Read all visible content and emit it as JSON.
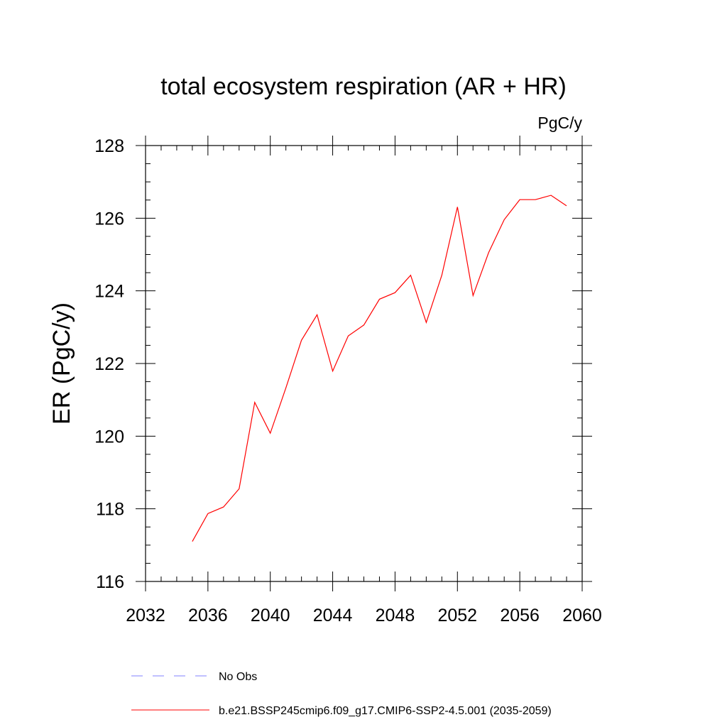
{
  "chart_data": {
    "type": "line",
    "title": "total ecosystem respiration (AR + HR)",
    "units_label": "PgC/y",
    "xlabel": "",
    "ylabel": "ER  (PgC/y)",
    "xlim": [
      2032,
      2060
    ],
    "ylim": [
      116,
      128
    ],
    "x_ticks": [
      2032,
      2036,
      2040,
      2044,
      2048,
      2052,
      2056,
      2060
    ],
    "x_tick_labels": [
      "2032",
      "2036",
      "2040",
      "2044",
      "2048",
      "2052",
      "2056",
      "2060"
    ],
    "y_ticks": [
      116,
      118,
      120,
      122,
      124,
      126,
      128
    ],
    "y_tick_labels": [
      "116",
      "118",
      "120",
      "122",
      "124",
      "126",
      "128"
    ],
    "x_minor_step": 1,
    "y_minor_step": 0.5,
    "grid": false,
    "legend_position": "bottom",
    "series": [
      {
        "name": "b.e21.BSSP245cmip6.f09_g17.CMIP6-SSP2-4.5.001 (2035-2059)",
        "color": "#ff0000",
        "dash": "solid",
        "x": [
          2035,
          2036,
          2037,
          2038,
          2039,
          2040,
          2041,
          2042,
          2043,
          2044,
          2045,
          2046,
          2047,
          2048,
          2049,
          2050,
          2051,
          2052,
          2053,
          2054,
          2055,
          2056,
          2057,
          2058,
          2059
        ],
        "y": [
          117.1,
          117.87,
          118.05,
          118.55,
          120.93,
          120.08,
          121.33,
          122.64,
          123.34,
          121.79,
          122.76,
          123.06,
          123.77,
          123.95,
          124.43,
          123.13,
          124.43,
          126.31,
          123.87,
          125.05,
          125.96,
          126.51,
          126.51,
          126.63,
          126.34
        ]
      }
    ],
    "legend": [
      {
        "label": "No Obs",
        "color": "#8080ff",
        "dash": "dashed"
      },
      {
        "label": "b.e21.BSSP245cmip6.f09_g17.CMIP6-SSP2-4.5.001 (2035-2059)",
        "color": "#ff0000",
        "dash": "solid"
      }
    ]
  }
}
